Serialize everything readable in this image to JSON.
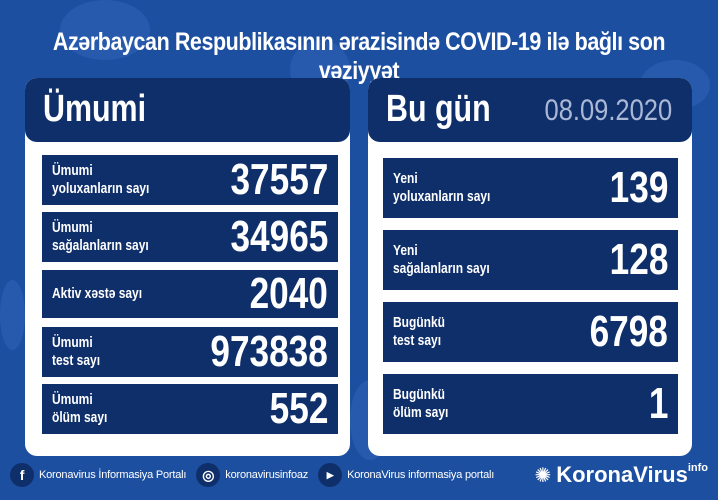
{
  "title": "Azərbaycan Respublikasının ərazisində COVID-19 ilə bağlı son vəziyyət",
  "total": {
    "heading": "Ümumi",
    "rows": [
      {
        "label": "Ümumi\nyoluxanların sayı",
        "value": "37557"
      },
      {
        "label": "Ümumi\nsağalanların sayı",
        "value": "34965"
      },
      {
        "label": "Aktiv xəstə sayı",
        "value": "2040"
      },
      {
        "label": "Ümumi\ntest sayı",
        "value": "973838"
      },
      {
        "label": "Ümumi\nölüm sayı",
        "value": "552"
      }
    ]
  },
  "today": {
    "heading": "Bu gün",
    "date": "08.09.2020",
    "rows": [
      {
        "label": "Yeni\nyoluxanların sayı",
        "value": "139"
      },
      {
        "label": "Yeni\nsağalanların sayı",
        "value": "128"
      },
      {
        "label": "Bugünkü\ntest sayı",
        "value": "6798"
      },
      {
        "label": "Bugünkü\nölüm sayı",
        "value": "1"
      }
    ]
  },
  "footer": {
    "facebook": "Koronavirus İnformasiya Portalı",
    "instagram": "koronavirusinfoaz",
    "youtube": "KoronaVirus informasiya portalı",
    "brand": "KoronaVirus",
    "brand_sup": "info"
  },
  "colors": {
    "background": "#1d4fa0",
    "panel_dark": "#0f2f6b"
  }
}
